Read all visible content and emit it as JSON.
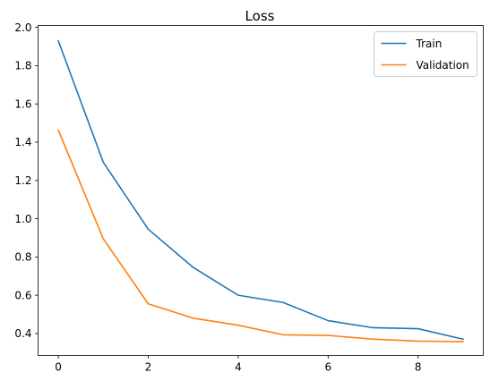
{
  "chart_data": {
    "type": "line",
    "title": "Loss",
    "xlabel": "",
    "ylabel": "",
    "x": [
      0,
      1,
      2,
      3,
      4,
      5,
      6,
      7,
      8,
      9
    ],
    "xlim": [
      -0.45,
      9.45
    ],
    "ylim": [
      0.285,
      2.01
    ],
    "xticks": [
      0,
      2,
      4,
      6,
      8
    ],
    "yticks": [
      0.4,
      0.6,
      0.8,
      1.0,
      1.2,
      1.4,
      1.6,
      1.8,
      2.0
    ],
    "xtick_labels": [
      "0",
      "2",
      "4",
      "6",
      "8"
    ],
    "ytick_labels": [
      "0.4",
      "0.6",
      "0.8",
      "1.0",
      "1.2",
      "1.4",
      "1.6",
      "1.8",
      "2.0"
    ],
    "grid": false,
    "legend_position": "top-right",
    "series": [
      {
        "name": "Train",
        "color": "#1f77b4",
        "values": [
          1.93,
          1.295,
          0.945,
          0.745,
          0.6,
          0.562,
          0.467,
          0.43,
          0.425,
          0.37
        ]
      },
      {
        "name": "Validation",
        "color": "#ff7f0e",
        "values": [
          1.463,
          0.895,
          0.555,
          0.48,
          0.443,
          0.393,
          0.39,
          0.37,
          0.36,
          0.357
        ]
      }
    ]
  }
}
